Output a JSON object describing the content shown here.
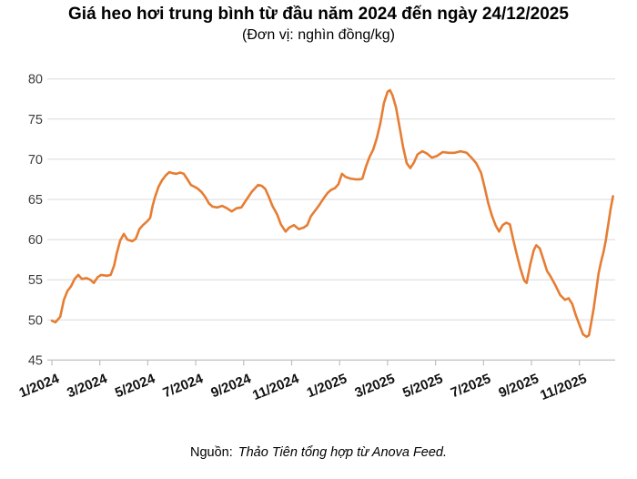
{
  "title": "Giá heo hơi trung bình từ đầu năm 2024 đến ngày 24/12/2025",
  "subtitle": "(Đơn vị: nghìn đồng/kg)",
  "source": {
    "prefix": "Nguồn:",
    "text": "Thảo Tiên tổng hợp từ Anova Feed."
  },
  "colors": {
    "line": "#E67D33",
    "grid": "#D9D9D9",
    "axis": "#BFBFBF",
    "tick": "#BFBFBF",
    "y_label": "#3D3D3D",
    "x_label": "#111111"
  },
  "chart_data": {
    "type": "line",
    "title": "Giá heo hơi trung bình từ đầu năm 2024 đến ngày 24/12/2025",
    "ylabel": "nghìn đồng/kg",
    "xlabel": "",
    "ylim": [
      45,
      80
    ],
    "y_ticks": [
      45,
      50,
      55,
      60,
      65,
      70,
      75,
      80
    ],
    "x_tick_labels": [
      "1/2024",
      "3/2024",
      "5/2024",
      "7/2024",
      "9/2024",
      "11/2024",
      "1/2025",
      "3/2025",
      "5/2025",
      "7/2025",
      "9/2025",
      "11/2025"
    ],
    "x_tick_months": [
      0,
      2,
      4,
      6,
      8,
      10,
      12,
      14,
      16,
      18,
      20,
      22
    ],
    "x_unit": "months since Jan 2024",
    "grid": "horizontal",
    "legend": "none",
    "series_name": "Giá heo hơi trung bình",
    "x": [
      0,
      0.15,
      0.35,
      0.5,
      0.65,
      0.8,
      0.95,
      1.1,
      1.25,
      1.45,
      1.6,
      1.75,
      1.9,
      2.05,
      2.3,
      2.45,
      2.6,
      2.7,
      2.85,
      3.0,
      3.15,
      3.35,
      3.5,
      3.65,
      3.8,
      3.95,
      4.1,
      4.2,
      4.3,
      4.45,
      4.6,
      4.75,
      4.9,
      5.05,
      5.2,
      5.35,
      5.5,
      5.65,
      5.8,
      6.0,
      6.1,
      6.25,
      6.4,
      6.55,
      6.7,
      6.9,
      7.1,
      7.3,
      7.5,
      7.7,
      7.9,
      8.1,
      8.35,
      8.6,
      8.75,
      8.9,
      9.05,
      9.2,
      9.4,
      9.55,
      9.75,
      9.9,
      10.1,
      10.3,
      10.5,
      10.65,
      10.8,
      11.0,
      11.15,
      11.35,
      11.5,
      11.65,
      11.8,
      11.95,
      12.1,
      12.25,
      12.45,
      12.65,
      12.85,
      12.95,
      13.1,
      13.25,
      13.4,
      13.55,
      13.7,
      13.85,
      14.0,
      14.1,
      14.2,
      14.35,
      14.5,
      14.65,
      14.8,
      14.95,
      15.1,
      15.25,
      15.45,
      15.65,
      15.85,
      16.05,
      16.3,
      16.55,
      16.8,
      17.05,
      17.3,
      17.5,
      17.7,
      17.9,
      18.05,
      18.2,
      18.35,
      18.5,
      18.65,
      18.8,
      18.95,
      19.1,
      19.25,
      19.4,
      19.55,
      19.7,
      19.8,
      19.95,
      20.1,
      20.2,
      20.35,
      20.5,
      20.65,
      20.8,
      21.0,
      21.2,
      21.4,
      21.55,
      21.7,
      21.85,
      22.0,
      22.15,
      22.3,
      22.4,
      22.5,
      22.6,
      22.7,
      22.8,
      22.9,
      23.0,
      23.1,
      23.2,
      23.3,
      23.4
    ],
    "values": [
      49.9,
      49.7,
      50.4,
      52.5,
      53.6,
      54.2,
      55.1,
      55.6,
      55.1,
      55.2,
      55.0,
      54.6,
      55.3,
      55.6,
      55.5,
      55.6,
      56.8,
      58.2,
      59.9,
      60.7,
      60.0,
      59.8,
      60.1,
      61.3,
      61.8,
      62.2,
      62.7,
      64.2,
      65.3,
      66.6,
      67.4,
      68.0,
      68.4,
      68.25,
      68.2,
      68.35,
      68.2,
      67.5,
      66.8,
      66.5,
      66.3,
      65.9,
      65.3,
      64.5,
      64.1,
      64.0,
      64.2,
      63.9,
      63.5,
      63.9,
      64.0,
      64.9,
      66.0,
      66.8,
      66.7,
      66.3,
      65.3,
      64.2,
      63.1,
      61.9,
      61.0,
      61.5,
      61.8,
      61.3,
      61.5,
      61.8,
      62.9,
      63.7,
      64.3,
      65.2,
      65.8,
      66.2,
      66.4,
      66.9,
      68.2,
      67.8,
      67.6,
      67.5,
      67.5,
      67.6,
      69.1,
      70.3,
      71.2,
      72.6,
      74.5,
      77.0,
      78.4,
      78.6,
      78.0,
      76.5,
      74.0,
      71.5,
      69.5,
      68.9,
      69.6,
      70.6,
      71.0,
      70.7,
      70.2,
      70.4,
      70.9,
      70.8,
      70.8,
      71.0,
      70.8,
      70.2,
      69.5,
      68.3,
      66.5,
      64.5,
      63.0,
      61.8,
      61.0,
      61.8,
      62.1,
      61.9,
      59.9,
      58.0,
      56.3,
      54.9,
      54.6,
      56.9,
      58.7,
      59.3,
      58.9,
      57.5,
      56.1,
      55.4,
      54.3,
      53.1,
      52.5,
      52.7,
      52.0,
      50.6,
      49.4,
      48.2,
      47.9,
      48.1,
      49.8,
      51.5,
      53.6,
      55.8,
      57.2,
      58.4,
      59.9,
      61.8,
      63.8,
      65.4
    ]
  }
}
